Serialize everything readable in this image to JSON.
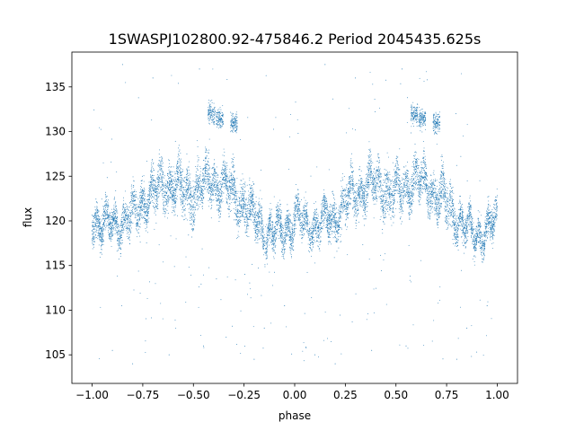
{
  "chart_data": {
    "type": "scatter",
    "title": "1SWASPJ102800.92-475846.2 Period 2045435.625s",
    "xlabel": "phase",
    "ylabel": "flux",
    "xlim": [
      -1.1,
      1.1
    ],
    "ylim": [
      101.8,
      138.9
    ],
    "xticks": [
      -1.0,
      -0.75,
      -0.5,
      -0.25,
      0.0,
      0.25,
      0.5,
      0.75,
      1.0
    ],
    "xtick_labels": [
      "−1.00",
      "−0.75",
      "−0.50",
      "−0.25",
      "0.00",
      "0.25",
      "0.50",
      "0.75",
      "1.00"
    ],
    "yticks": [
      105,
      110,
      115,
      120,
      125,
      130,
      135
    ],
    "ytick_labels": [
      "105",
      "110",
      "115",
      "120",
      "125",
      "130",
      "135"
    ],
    "grid": false,
    "legend": "none",
    "point_color": "#1f77b4",
    "series": [
      {
        "phase_profile": {
          "phase": [
            -1.0,
            -0.95,
            -0.9,
            -0.85,
            -0.8,
            -0.75,
            -0.7,
            -0.65,
            -0.6,
            -0.55,
            -0.5,
            -0.45,
            -0.4,
            -0.35,
            -0.3,
            -0.25,
            -0.2,
            -0.15,
            -0.1,
            -0.05,
            0.0
          ],
          "flux_center": [
            120.5,
            119.5,
            119.5,
            120.0,
            120.5,
            122.0,
            123.0,
            124.0,
            124.0,
            123.5,
            123.0,
            124.0,
            124.5,
            124.0,
            123.0,
            122.0,
            120.5,
            119.0,
            118.5,
            119.0,
            120.0
          ],
          "flux_spread": [
            2.5,
            2.5,
            2.5,
            2.5,
            3.0,
            3.0,
            3.0,
            3.0,
            3.0,
            3.5,
            3.5,
            3.0,
            3.0,
            3.0,
            3.0,
            3.5,
            3.0,
            2.5,
            2.5,
            2.5,
            2.5
          ]
        },
        "bright_clumps": [
          {
            "phase": -0.41,
            "flux": 132.0
          },
          {
            "phase": -0.37,
            "flux": 131.5
          },
          {
            "phase": -0.3,
            "flux": 131.0
          },
          {
            "phase": 0.59,
            "flux": 132.0
          },
          {
            "phase": 0.63,
            "flux": 131.5
          },
          {
            "phase": 0.7,
            "flux": 131.0
          }
        ],
        "outliers": [
          {
            "phase": -0.9,
            "flux": 105.5
          },
          {
            "phase": -0.8,
            "flux": 104.0
          },
          {
            "phase": -0.62,
            "flux": 105.0
          },
          {
            "phase": -0.45,
            "flux": 106.0
          },
          {
            "phase": -0.2,
            "flux": 104.5
          },
          {
            "phase": -0.05,
            "flux": 110.5
          },
          {
            "phase": 0.1,
            "flux": 105.0
          },
          {
            "phase": 0.2,
            "flux": 104.0
          },
          {
            "phase": 0.38,
            "flux": 105.5
          },
          {
            "phase": 0.55,
            "flux": 106.0
          },
          {
            "phase": 0.8,
            "flux": 104.5
          },
          {
            "phase": 0.95,
            "flux": 110.5
          },
          {
            "phase": -0.85,
            "flux": 137.5
          },
          {
            "phase": -0.7,
            "flux": 136.0
          },
          {
            "phase": -0.47,
            "flux": 137.0
          },
          {
            "phase": 0.15,
            "flux": 137.5
          },
          {
            "phase": 0.3,
            "flux": 136.0
          },
          {
            "phase": 0.53,
            "flux": 137.0
          },
          {
            "phase": -0.15,
            "flux": 108.0
          },
          {
            "phase": 0.85,
            "flux": 108.0
          }
        ]
      }
    ]
  }
}
